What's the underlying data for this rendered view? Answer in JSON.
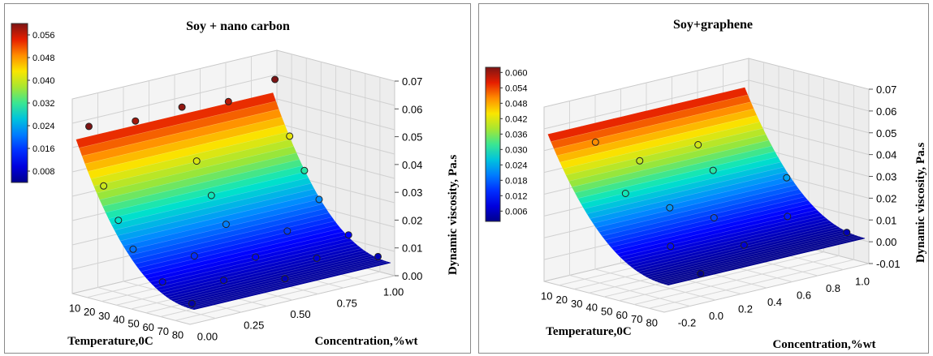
{
  "chart_data": [
    {
      "type": "surface",
      "title": "Soy + nano carbon",
      "xlabel": "Temperature,0C",
      "ylabel": "Concentration,%wt",
      "zlabel": "Dynamic viscosity, Pa.s",
      "x_ticks": [
        "10",
        "20",
        "30",
        "40",
        "50",
        "60",
        "70",
        "80"
      ],
      "y_ticks": [
        "0.00",
        "0.25",
        "0.50",
        "0.75",
        "1.00"
      ],
      "z_ticks": [
        "0.00",
        "0.01",
        "0.02",
        "0.03",
        "0.04",
        "0.05",
        "0.06",
        "0.07"
      ],
      "colorbar_ticks": [
        "0.056",
        "0.048",
        "0.040",
        "0.032",
        "0.024",
        "0.016",
        "0.008"
      ],
      "colorbar_range": [
        0.004,
        0.06
      ],
      "grid": true,
      "colorbar_position": "top-left",
      "points": [
        {
          "x": 10,
          "y": 0.0,
          "z": 0.06
        },
        {
          "x": 10,
          "y": 0.25,
          "z": 0.058
        },
        {
          "x": 10,
          "y": 0.5,
          "z": 0.059
        },
        {
          "x": 10,
          "y": 0.75,
          "z": 0.057
        },
        {
          "x": 10,
          "y": 1.0,
          "z": 0.061
        },
        {
          "x": 20,
          "y": 0.0,
          "z": 0.04
        },
        {
          "x": 20,
          "y": 0.5,
          "z": 0.041
        },
        {
          "x": 20,
          "y": 1.0,
          "z": 0.042
        },
        {
          "x": 30,
          "y": 0.0,
          "z": 0.029
        },
        {
          "x": 30,
          "y": 0.5,
          "z": 0.03
        },
        {
          "x": 30,
          "y": 1.0,
          "z": 0.031
        },
        {
          "x": 40,
          "y": 0.0,
          "z": 0.02
        },
        {
          "x": 40,
          "y": 0.5,
          "z": 0.021
        },
        {
          "x": 40,
          "y": 1.0,
          "z": 0.022
        },
        {
          "x": 50,
          "y": 0.25,
          "z": 0.015
        },
        {
          "x": 50,
          "y": 0.75,
          "z": 0.016
        },
        {
          "x": 60,
          "y": 0.0,
          "z": 0.011
        },
        {
          "x": 60,
          "y": 0.5,
          "z": 0.012
        },
        {
          "x": 60,
          "y": 1.0,
          "z": 0.012
        },
        {
          "x": 70,
          "y": 0.25,
          "z": 0.009
        },
        {
          "x": 70,
          "y": 0.75,
          "z": 0.009
        },
        {
          "x": 80,
          "y": 0.0,
          "z": 0.006
        },
        {
          "x": 80,
          "y": 0.5,
          "z": 0.007
        },
        {
          "x": 80,
          "y": 1.0,
          "z": 0.007
        }
      ]
    },
    {
      "type": "surface",
      "title": "Soy+graphene",
      "xlabel": "Temperature,0C",
      "ylabel": "Concentration,%wt",
      "zlabel": "Dynamic viscosity, Pa.s",
      "x_ticks": [
        "10",
        "20",
        "30",
        "40",
        "50",
        "60",
        "70",
        "80"
      ],
      "y_ticks": [
        "-0.2",
        "0.0",
        "0.2",
        "0.4",
        "0.6",
        "0.8",
        "1.0"
      ],
      "z_ticks": [
        "-0.01",
        "0.00",
        "0.01",
        "0.02",
        "0.03",
        "0.04",
        "0.05",
        "0.06",
        "0.07"
      ],
      "colorbar_ticks": [
        "0.060",
        "0.054",
        "0.048",
        "0.042",
        "0.036",
        "0.030",
        "0.024",
        "0.018",
        "0.012",
        "0.006"
      ],
      "colorbar_range": [
        0.002,
        0.062
      ],
      "grid": true,
      "colorbar_position": "top-left",
      "points": [
        {
          "x": 10,
          "y": 0.0,
          "z": 0.05
        },
        {
          "x": 20,
          "y": 0.2,
          "z": 0.04
        },
        {
          "x": 20,
          "y": 0.6,
          "z": 0.041
        },
        {
          "x": 30,
          "y": 0.0,
          "z": 0.03
        },
        {
          "x": 30,
          "y": 0.6,
          "z": 0.031
        },
        {
          "x": 40,
          "y": 0.2,
          "z": 0.022
        },
        {
          "x": 40,
          "y": 1.0,
          "z": 0.023
        },
        {
          "x": 50,
          "y": 0.4,
          "z": 0.016
        },
        {
          "x": 60,
          "y": 0.0,
          "z": 0.011
        },
        {
          "x": 60,
          "y": 0.8,
          "z": 0.012
        },
        {
          "x": 70,
          "y": 0.4,
          "z": 0.007
        },
        {
          "x": 80,
          "y": 0.0,
          "z": 0.002
        },
        {
          "x": 80,
          "y": 1.0,
          "z": 0.005
        }
      ]
    }
  ]
}
